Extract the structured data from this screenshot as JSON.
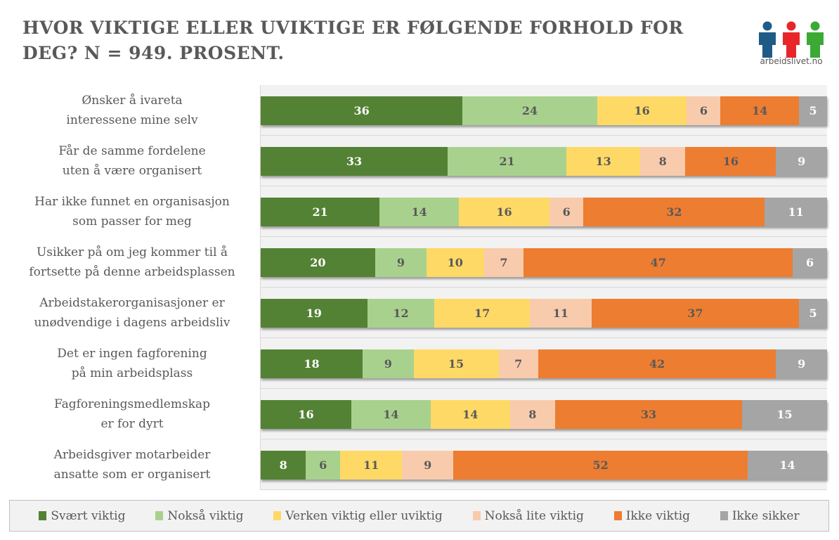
{
  "title_line1": "HVOR VIKTIGE ELLER UVIKTIGE ER FØLGENDE FORHOLD FOR",
  "title_line2": "DEG? N = 949. PROSENT.",
  "logo": {
    "text": "arbeidslivet.no",
    "figure_colors": [
      "#1f5b87",
      "#e8262a",
      "#3aaa35"
    ]
  },
  "chart_data": {
    "type": "bar",
    "orientation": "horizontal",
    "stacked": true,
    "title": "HVOR VIKTIGE ELLER UVIKTIGE ER FØLGENDE FORHOLD FOR DEG? N = 949. PROSENT.",
    "xlabel": "",
    "ylabel": "",
    "xlim": [
      0,
      100
    ],
    "grid": false,
    "legend_position": "bottom",
    "categories": [
      [
        "Ønsker å ivareta",
        "interessene mine selv"
      ],
      [
        "Får de samme fordelene",
        "uten å være organisert"
      ],
      [
        "Har ikke funnet en organisasjon",
        "som passer for meg"
      ],
      [
        "Usikker på om jeg kommer til å",
        "fortsette på denne arbeidsplassen"
      ],
      [
        "Arbeidstakerorganisasjoner er",
        "unødvendige i dagens arbeidsliv"
      ],
      [
        "Det er ingen fagforening",
        "på min arbeidsplass"
      ],
      [
        "Fagforeningsmedlemskap",
        "er for dyrt"
      ],
      [
        "Arbeidsgiver motarbeider",
        "ansatte som er organisert"
      ]
    ],
    "series": [
      {
        "name": "Svært viktig",
        "color": "#548235",
        "label_color": "#ffffff",
        "values": [
          36,
          33,
          21,
          20,
          19,
          18,
          16,
          8
        ]
      },
      {
        "name": "Nokså viktig",
        "color": "#a9d18e",
        "label_color": "#595959",
        "values": [
          24,
          21,
          14,
          9,
          12,
          9,
          14,
          6
        ]
      },
      {
        "name": "Verken viktig eller uviktig",
        "color": "#ffd966",
        "label_color": "#595959",
        "values": [
          16,
          13,
          16,
          10,
          17,
          15,
          14,
          11
        ]
      },
      {
        "name": "Nokså lite viktig",
        "color": "#f8cbad",
        "label_color": "#595959",
        "values": [
          6,
          8,
          6,
          7,
          11,
          7,
          8,
          9
        ]
      },
      {
        "name": "Ikke viktig",
        "color": "#ed7d31",
        "label_color": "#595959",
        "values": [
          14,
          16,
          32,
          47,
          37,
          42,
          33,
          52
        ]
      },
      {
        "name": "Ikke sikker",
        "color": "#a5a5a5",
        "label_color": "#ffffff",
        "values": [
          5,
          9,
          11,
          6,
          5,
          9,
          15,
          14
        ]
      }
    ]
  }
}
